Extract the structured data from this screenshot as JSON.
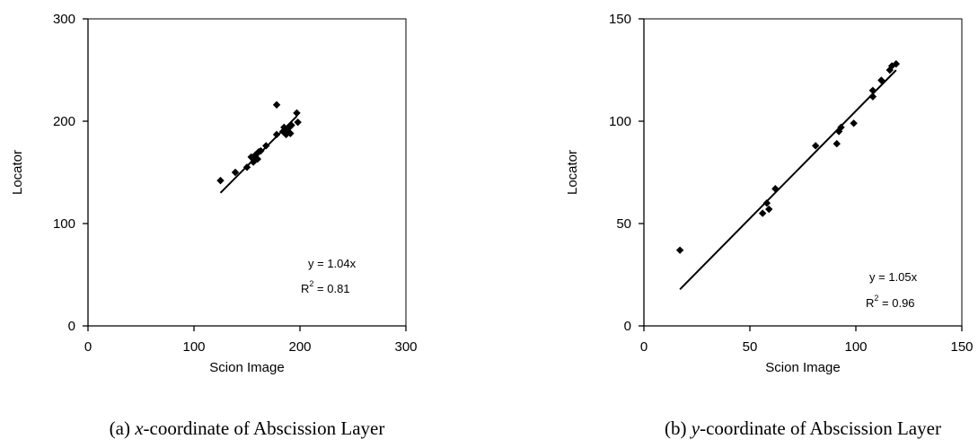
{
  "chart_data": [
    {
      "type": "scatter",
      "caption_prefix": "(a) ",
      "caption_var": "x",
      "caption_rest": "-coordinate of Abscission Layer",
      "xlabel": "Scion Image",
      "ylabel": "Locator",
      "xlim": [
        0,
        300
      ],
      "ylim": [
        0,
        300
      ],
      "xticks": [
        0,
        100,
        200,
        300
      ],
      "yticks": [
        0,
        100,
        200,
        300
      ],
      "grid": false,
      "equation": "y = 1.04x",
      "r2_label": "R",
      "r2_sup": "2",
      "r2_value": " = 0.81",
      "fit_slope": 1.04,
      "fit_x_range": [
        125,
        197
      ],
      "points": [
        {
          "x": 125,
          "y": 142
        },
        {
          "x": 139,
          "y": 150
        },
        {
          "x": 150,
          "y": 155
        },
        {
          "x": 154,
          "y": 165
        },
        {
          "x": 156,
          "y": 160
        },
        {
          "x": 157,
          "y": 162
        },
        {
          "x": 158,
          "y": 167
        },
        {
          "x": 160,
          "y": 163
        },
        {
          "x": 161,
          "y": 170
        },
        {
          "x": 163,
          "y": 171
        },
        {
          "x": 168,
          "y": 176
        },
        {
          "x": 178,
          "y": 187
        },
        {
          "x": 178,
          "y": 216
        },
        {
          "x": 184,
          "y": 190
        },
        {
          "x": 185,
          "y": 194
        },
        {
          "x": 186,
          "y": 188
        },
        {
          "x": 187,
          "y": 187
        },
        {
          "x": 188,
          "y": 192
        },
        {
          "x": 189,
          "y": 190
        },
        {
          "x": 190,
          "y": 194
        },
        {
          "x": 191,
          "y": 188
        },
        {
          "x": 192,
          "y": 196
        },
        {
          "x": 197,
          "y": 208
        },
        {
          "x": 198,
          "y": 199
        }
      ]
    },
    {
      "type": "scatter",
      "caption_prefix": "(b) ",
      "caption_var": "y",
      "caption_rest": "-coordinate of Abscission Layer",
      "xlabel": "Scion Image",
      "ylabel": "Locator",
      "xlim": [
        0,
        150
      ],
      "ylim": [
        0,
        150
      ],
      "xticks": [
        0,
        50,
        100,
        150
      ],
      "yticks": [
        0,
        50,
        100,
        150
      ],
      "grid": false,
      "equation": "y = 1.05x",
      "r2_label": "R",
      "r2_sup": "2",
      "r2_value": " = 0.96",
      "fit_slope": 1.05,
      "fit_x_range": [
        17,
        119
      ],
      "points": [
        {
          "x": 17,
          "y": 37
        },
        {
          "x": 56,
          "y": 55
        },
        {
          "x": 58,
          "y": 60
        },
        {
          "x": 59,
          "y": 57
        },
        {
          "x": 62,
          "y": 67
        },
        {
          "x": 81,
          "y": 88
        },
        {
          "x": 91,
          "y": 89
        },
        {
          "x": 92,
          "y": 95
        },
        {
          "x": 93,
          "y": 97
        },
        {
          "x": 99,
          "y": 99
        },
        {
          "x": 108,
          "y": 112
        },
        {
          "x": 108,
          "y": 115
        },
        {
          "x": 112,
          "y": 120
        },
        {
          "x": 116,
          "y": 125
        },
        {
          "x": 117,
          "y": 127
        },
        {
          "x": 119,
          "y": 128
        }
      ]
    }
  ]
}
